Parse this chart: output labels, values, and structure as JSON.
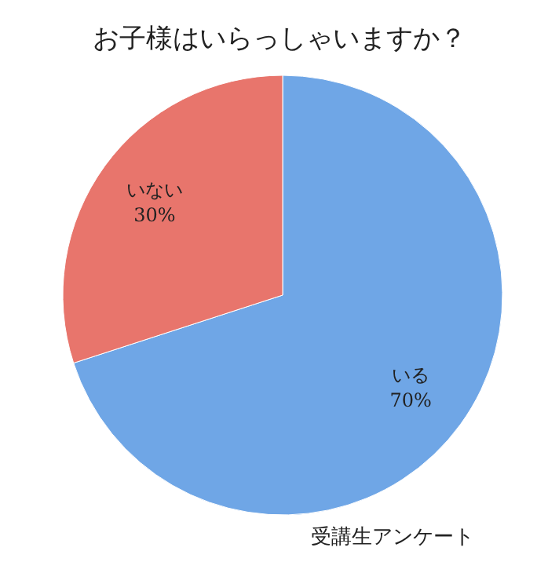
{
  "chart_data": {
    "type": "pie",
    "title": "お子様はいらっしゃいますか？",
    "categories": [
      "いる",
      "いない"
    ],
    "values": [
      70,
      30
    ],
    "colors": [
      "#6fa6e6",
      "#e8756c"
    ],
    "value_labels": [
      "70%",
      "30%"
    ],
    "annotations": [
      "受講生アンケート"
    ],
    "legend": false
  }
}
